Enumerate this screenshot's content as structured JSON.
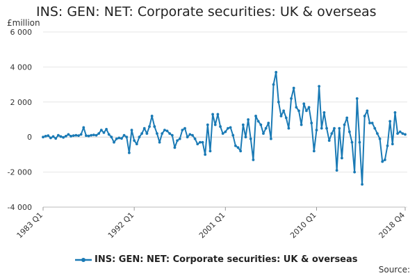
{
  "chart_data": {
    "type": "line",
    "title": "INS: GEN: NET: Corporate securities: UK & overseas",
    "unit": "£million",
    "ylim": [
      -4000,
      6000
    ],
    "y_ticks": [
      -4000,
      -2000,
      0,
      2000,
      4000,
      6000
    ],
    "y_tick_labels": [
      "-4 000",
      "-2 000",
      "0",
      "2 000",
      "4 000",
      "6 000"
    ],
    "x_start": "1983 Q1",
    "x_end": "2018 Q4",
    "x_tick_labels": [
      {
        "label": "1983 Q1",
        "index": 0
      },
      {
        "label": "1992 Q1",
        "index": 36
      },
      {
        "label": "2001 Q1",
        "index": 72
      },
      {
        "label": "2010 Q1",
        "index": 108
      },
      {
        "label": "2018 Q4",
        "index": 143
      }
    ],
    "grid": "horizontal",
    "legend_position": "bottom",
    "series": [
      {
        "name": "INS: GEN: NET: Corporate securities: UK & overseas",
        "color": "#1a7ab5",
        "values": [
          0,
          50,
          80,
          -50,
          30,
          -80,
          100,
          30,
          -20,
          50,
          150,
          50,
          80,
          100,
          80,
          150,
          550,
          80,
          60,
          100,
          120,
          100,
          200,
          400,
          250,
          450,
          150,
          0,
          -300,
          -100,
          -50,
          -80,
          100,
          0,
          -900,
          400,
          -200,
          -400,
          0,
          200,
          500,
          200,
          600,
          1200,
          600,
          200,
          -300,
          200,
          400,
          350,
          200,
          100,
          -600,
          -200,
          -100,
          400,
          500,
          0,
          150,
          100,
          -100,
          -400,
          -300,
          -300,
          -1000,
          700,
          -800,
          1300,
          700,
          1300,
          600,
          200,
          300,
          500,
          550,
          100,
          -500,
          -600,
          -800,
          700,
          0,
          1000,
          -100,
          -1300,
          1200,
          900,
          700,
          200,
          500,
          800,
          -100,
          3000,
          3700,
          2000,
          1200,
          1500,
          1100,
          500,
          2200,
          2800,
          1700,
          1500,
          700,
          1900,
          1500,
          1700,
          800,
          -800,
          400,
          2900,
          500,
          1400,
          500,
          -200,
          200,
          500,
          -1900,
          500,
          -1200,
          700,
          1100,
          300,
          -300,
          -2000,
          2200,
          -300,
          -2700,
          1200,
          1500,
          800,
          800,
          500,
          200,
          -100,
          -1400,
          -1300,
          -500,
          900,
          -400,
          1400,
          200,
          300,
          200,
          150
        ]
      }
    ]
  },
  "source_label": "Source:"
}
